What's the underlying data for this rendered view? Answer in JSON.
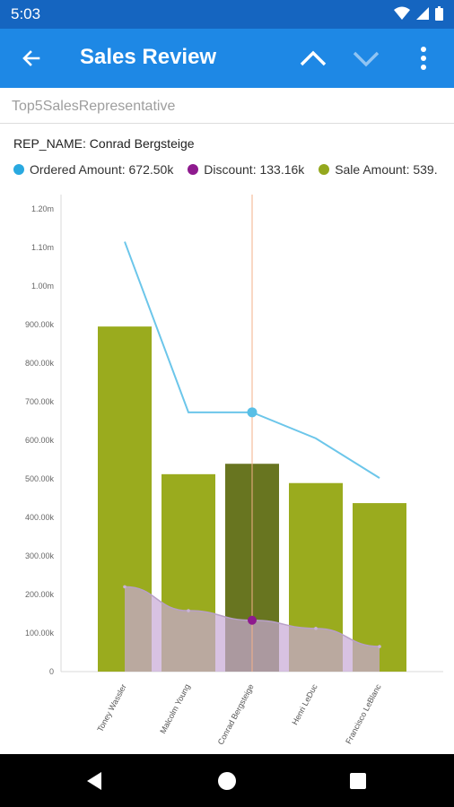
{
  "status_bar": {
    "time": "5:03"
  },
  "app_bar": {
    "title": "Sales Review"
  },
  "report": {
    "name": "Top5SalesRepresentative"
  },
  "tooltip": {
    "title": "REP_NAME: Conrad Bergsteige"
  },
  "legend": [
    {
      "label": "Ordered Amount: 672.50k",
      "color": "#29a9e0"
    },
    {
      "label": "Discount: 133.16k",
      "color": "#8e1a8e"
    },
    {
      "label": "Sale Amount: 539.",
      "color": "#94a81e"
    }
  ],
  "chart_data": {
    "type": "bar",
    "categories": [
      "Toney Wassler",
      "Malcolm Young",
      "Conrad Bergsteige",
      "Henri LeDuc",
      "Francisco LeBlanc"
    ],
    "selected_index": 2,
    "y_tick_labels": [
      "0",
      "100.00k",
      "200.00k",
      "300.00k",
      "400.00k",
      "500.00k",
      "600.00k",
      "700.00k",
      "800.00k",
      "900.00k",
      "1.00m",
      "1.10m",
      "1.20m"
    ],
    "ylim": [
      0,
      1200000
    ],
    "series": [
      {
        "name": "Sale Amount",
        "kind": "bar",
        "color": "#9aab1e",
        "selected_color": "#687520",
        "values": [
          895000,
          512000,
          539000,
          489000,
          437000
        ]
      },
      {
        "name": "Ordered Amount",
        "kind": "line",
        "color": "#6cc6ea",
        "values": [
          1115000,
          672500,
          672500,
          605000,
          502000
        ]
      },
      {
        "name": "Discount",
        "kind": "area",
        "color": "#c8a8d6",
        "line_color": "#b8a0c8",
        "values": [
          220000,
          158000,
          133160,
          112000,
          65000
        ]
      }
    ]
  }
}
